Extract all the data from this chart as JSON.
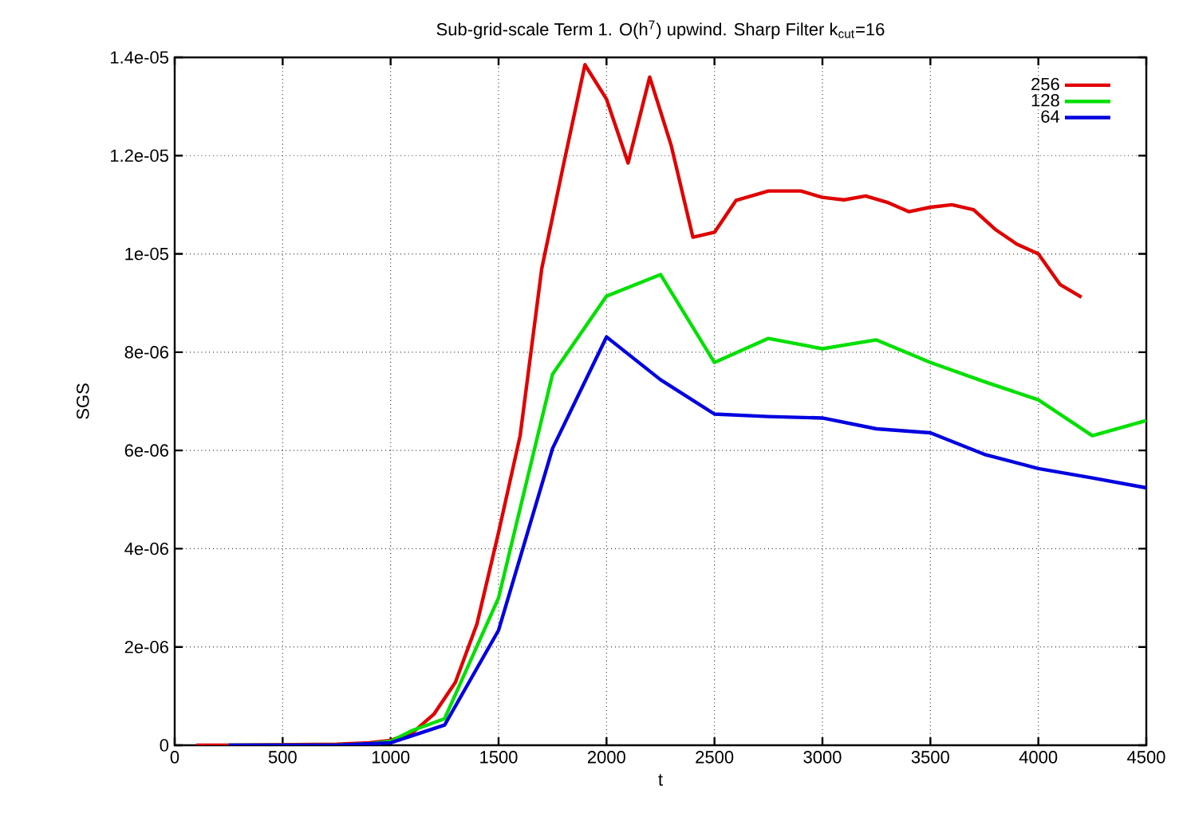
{
  "chart_data": {
    "type": "line",
    "title": "Sub-grid-scale Term 1. O(h$^{7}$) upwind. Sharp Filter k$_{cut}$=16",
    "xlabel": "t",
    "ylabel": "SGS",
    "xlim": [
      0,
      4500
    ],
    "xticks": [
      0,
      500,
      1000,
      1500,
      2000,
      2500,
      3000,
      3500,
      4000,
      4500
    ],
    "ylim": [
      0,
      1.4e-05
    ],
    "yticks": [
      0,
      {
        "value": 2e-06,
        "label": "2e-06"
      },
      {
        "value": 4e-06,
        "label": "4e-06"
      },
      {
        "value": 6e-06,
        "label": "6e-06"
      },
      {
        "value": 8e-06,
        "label": "8e-06"
      },
      {
        "value": 1e-05,
        "label": "1e-05"
      },
      {
        "value": 1.2e-05,
        "label": "1.2e-05"
      },
      {
        "value": 1.4e-05,
        "label": "1.4e-05"
      }
    ],
    "grid": true,
    "legend": "top right",
    "line_style": "solid",
    "marker": "none",
    "series": [
      {
        "name": "256",
        "color": "#e00000",
        "x": [
          100,
          250,
          750,
          900,
          1000,
          1100,
          1200,
          1300,
          1400,
          1500,
          1600,
          1700,
          1800,
          1900,
          2000,
          2100,
          2200,
          2300,
          2400,
          2500,
          2600,
          2750,
          2900,
          3000,
          3100,
          3200,
          3300,
          3400,
          3500,
          3600,
          3700,
          3800,
          3900,
          4000,
          4100,
          4200
        ],
        "values": [
          0,
          0,
          2e-08,
          5e-08,
          1e-07,
          2.5e-07,
          6.3e-07,
          1.28e-06,
          2.47e-06,
          4.33e-06,
          6.3e-06,
          9.7e-06,
          1.18e-05,
          1.385e-05,
          1.315e-05,
          1.185e-05,
          1.36e-05,
          1.22e-05,
          1.034e-05,
          1.044e-05,
          1.109e-05,
          1.128e-05,
          1.128e-05,
          1.115e-05,
          1.11e-05,
          1.118e-05,
          1.105e-05,
          1.086e-05,
          1.095e-05,
          1.1e-05,
          1.09e-05,
          1.05e-05,
          1.02e-05,
          1e-05,
          9.38e-06,
          9.12e-06
        ]
      },
      {
        "name": "128",
        "color": "#00e000",
        "x": [
          250,
          750,
          900,
          1000,
          1100,
          1250,
          1500,
          1750,
          2000,
          2250,
          2500,
          2750,
          3000,
          3250,
          3500,
          3750,
          4000,
          4250,
          4500
        ],
        "values": [
          0,
          0,
          3e-08,
          8e-08,
          3e-07,
          5.4e-07,
          3e-06,
          7.55e-06,
          9.14e-06,
          9.58e-06,
          7.79e-06,
          8.28e-06,
          8.07e-06,
          8.25e-06,
          7.79e-06,
          7.4e-06,
          7.03e-06,
          6.3e-06,
          6.61e-06
        ]
      },
      {
        "name": "64",
        "color": "#0000e0",
        "x": [
          250,
          750,
          1000,
          1250,
          1500,
          1750,
          2000,
          2250,
          2500,
          2750,
          3000,
          3250,
          3500,
          3750,
          4000,
          4250,
          4500
        ],
        "values": [
          0,
          0,
          5e-08,
          4.1e-07,
          2.34e-06,
          6.04e-06,
          8.31e-06,
          7.44e-06,
          6.74e-06,
          6.69e-06,
          6.66e-06,
          6.44e-06,
          6.36e-06,
          5.92e-06,
          5.63e-06,
          5.44e-06,
          5.24e-06
        ]
      }
    ]
  }
}
